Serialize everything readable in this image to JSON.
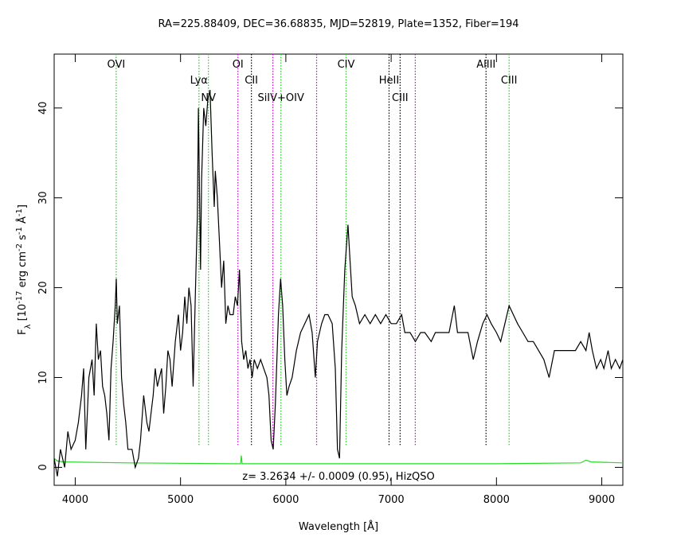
{
  "chart_data": {
    "type": "line",
    "title": "RA=225.88409, DEC=36.68835, MJD=52819, Plate=1352, Fiber=194",
    "xlabel": "Wavelength [Å]",
    "ylabel": [
      "F",
      "λ",
      " [10",
      "-17",
      " erg cm",
      "-2",
      " s",
      "-1",
      " Å",
      "-1",
      "]"
    ],
    "annotation": "z= 3.2634 +/- 0.0009 (0.95), HizQSO",
    "xlim": [
      3800,
      9200
    ],
    "ylim": [
      -2,
      46
    ],
    "xticks": [
      4000,
      5000,
      6000,
      7000,
      8000,
      9000
    ],
    "yticks": [
      0,
      10,
      20,
      30,
      40
    ],
    "lines": [
      {
        "x": 4389,
        "label": "OVI",
        "color": "#22cc22"
      },
      {
        "x": 5175,
        "label": "Lyα",
        "color": "#22cc22"
      },
      {
        "x": 5265,
        "label": "NV",
        "color": "#22cc22"
      },
      {
        "x": 5545,
        "label": "OI",
        "color": "#cc00cc"
      },
      {
        "x": 5673,
        "label": "CII",
        "color": "#000000"
      },
      {
        "x": 5877,
        "label": null,
        "color": "#cc00cc"
      },
      {
        "x": 5953,
        "label": "SiIV+OIV",
        "color": "#22cc22"
      },
      {
        "x": 6292,
        "label": null,
        "color": "#cc00cc"
      },
      {
        "x": 6572,
        "label": "CIV",
        "color": "#22cc22"
      },
      {
        "x": 6980,
        "label": "HeII",
        "color": "#000000"
      },
      {
        "x": 7085,
        "label": "CIII",
        "color": "#000000"
      },
      {
        "x": 7229,
        "label": null,
        "color": "#cc00cc"
      },
      {
        "x": 7901,
        "label": "AlIII",
        "color": "#000000"
      },
      {
        "x": 8120,
        "label": "CIII",
        "color": "#22cc22"
      }
    ],
    "series": [
      {
        "color": "#000000",
        "x": [
          3800,
          3830,
          3860,
          3900,
          3930,
          3960,
          4000,
          4030,
          4060,
          4080,
          4100,
          4130,
          4160,
          4180,
          4200,
          4220,
          4240,
          4260,
          4280,
          4300,
          4320,
          4340,
          4360,
          4380,
          4390,
          4400,
          4420,
          4440,
          4460,
          4480,
          4500,
          4540,
          4570,
          4600,
          4620,
          4650,
          4680,
          4700,
          4720,
          4740,
          4760,
          4780,
          4800,
          4820,
          4840,
          4860,
          4880,
          4900,
          4920,
          4950,
          4980,
          5000,
          5020,
          5040,
          5060,
          5080,
          5100,
          5120,
          5140,
          5160,
          5170,
          5190,
          5200,
          5220,
          5240,
          5260,
          5280,
          5300,
          5320,
          5330,
          5350,
          5370,
          5390,
          5410,
          5430,
          5450,
          5470,
          5500,
          5520,
          5540,
          5560,
          5580,
          5600,
          5620,
          5640,
          5660,
          5680,
          5700,
          5730,
          5760,
          5790,
          5820,
          5840,
          5860,
          5880,
          5900,
          5930,
          5950,
          5970,
          5990,
          6010,
          6030,
          6060,
          6100,
          6140,
          6180,
          6220,
          6250,
          6280,
          6300,
          6340,
          6370,
          6400,
          6440,
          6470,
          6490,
          6510,
          6530,
          6560,
          6590,
          6610,
          6630,
          6660,
          6700,
          6750,
          6800,
          6850,
          6900,
          6950,
          7000,
          7050,
          7100,
          7130,
          7180,
          7230,
          7280,
          7320,
          7380,
          7420,
          7480,
          7550,
          7600,
          7630,
          7680,
          7730,
          7780,
          7820,
          7870,
          7910,
          7950,
          8000,
          8040,
          8080,
          8120,
          8160,
          8200,
          8250,
          8300,
          8350,
          8400,
          8450,
          8500,
          8550,
          8600,
          8650,
          8700,
          8750,
          8800,
          8850,
          8880,
          8910,
          8950,
          8990,
          9020,
          9060,
          9090,
          9130,
          9170,
          9200
        ],
        "values": [
          1,
          -1,
          2,
          0,
          4,
          2,
          3,
          5,
          8,
          11,
          2,
          10,
          12,
          8,
          16,
          12,
          13,
          9,
          8,
          6,
          3,
          11,
          14,
          18,
          21,
          16,
          18,
          10,
          7,
          5,
          2,
          2,
          0,
          1,
          3,
          8,
          5,
          4,
          6,
          8,
          11,
          9,
          10,
          11,
          6,
          9,
          13,
          12,
          9,
          14,
          17,
          13,
          15,
          19,
          16,
          20,
          18,
          9,
          19,
          28,
          40,
          22,
          32,
          40,
          38,
          41,
          42,
          35,
          29,
          33,
          30,
          25,
          20,
          23,
          16,
          18,
          17,
          17,
          19,
          18,
          22,
          14,
          12,
          13,
          11,
          12,
          10,
          12,
          11,
          12,
          11,
          10,
          8,
          3,
          2,
          7,
          17,
          21,
          18,
          12,
          8,
          9,
          10,
          13,
          15,
          16,
          17,
          15,
          10,
          14,
          16,
          17,
          17,
          16,
          11,
          2,
          1,
          13,
          22,
          27,
          23,
          19,
          18,
          16,
          17,
          16,
          17,
          16,
          17,
          16,
          16,
          17,
          15,
          15,
          14,
          15,
          15,
          14,
          15,
          15,
          15,
          18,
          15,
          15,
          15,
          12,
          14,
          16,
          17,
          16,
          15,
          14,
          16,
          18,
          17,
          16,
          15,
          14,
          14,
          13,
          12,
          10,
          13,
          13,
          13,
          13,
          13,
          14,
          13,
          15,
          13,
          11,
          12,
          11,
          13,
          11,
          12,
          11,
          12
        ]
      },
      {
        "color": "#22dd22",
        "x": [
          3800,
          3830,
          3900,
          4500,
          5500,
          5570,
          5577,
          5585,
          6500,
          8000,
          8800,
          8850,
          8900,
          9200
        ],
        "values": [
          1,
          0.7,
          0.6,
          0.5,
          0.4,
          0.4,
          1.3,
          0.4,
          0.4,
          0.4,
          0.5,
          0.8,
          0.6,
          0.5
        ]
      }
    ]
  }
}
